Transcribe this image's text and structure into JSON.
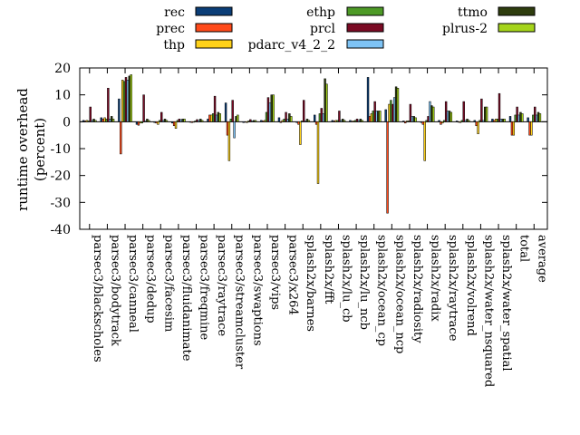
{
  "chart_data": {
    "type": "bar",
    "ylabel": [
      "runtime overhead",
      "(percent)"
    ],
    "ylim": [
      -40,
      20
    ],
    "yticks": [
      -40,
      -30,
      -20,
      -10,
      0,
      10,
      20
    ],
    "legend_position": "top",
    "categories": [
      "parsec3/blackscholes",
      "parsec3/bodytrack",
      "parsec3/canneal",
      "parsec3/dedup",
      "parsec3/facesim",
      "parsec3/fluidanimate",
      "parsec3/freqmine",
      "parsec3/raytrace",
      "parsec3/streamcluster",
      "parsec3/swaptions",
      "parsec3/vips",
      "parsec3/x264",
      "splash2x/barnes",
      "splash2x/fft",
      "splash2x/lu_cb",
      "splash2x/lu_ncb",
      "splash2x/ocean_cp",
      "splash2x/ocean_ncp",
      "splash2x/radiosity",
      "splash2x/radix",
      "splash2x/raytrace",
      "splash2x/volrend",
      "splash2x/water_nsquared",
      "splash2x/water_spatial",
      "total",
      "average"
    ],
    "series": [
      {
        "name": "rec",
        "color": "#0b3e77",
        "values": [
          0.5,
          1.5,
          8.5,
          -1.0,
          -0.3,
          -0.5,
          0.0,
          1.0,
          7.0,
          -0.3,
          0.5,
          1.5,
          -0.3,
          2.5,
          0.5,
          0.5,
          16.5,
          4.5,
          0.3,
          -0.3,
          0.5,
          0.3,
          0.5,
          1.0,
          2.0,
          1.5
        ]
      },
      {
        "name": "prec",
        "color": "#ff4a1a",
        "values": [
          0.3,
          1.0,
          -12.0,
          -1.3,
          -0.5,
          -1.5,
          -0.3,
          2.5,
          -5.0,
          -0.2,
          0.3,
          -0.3,
          -1.0,
          -1.0,
          0.3,
          0.2,
          2.0,
          -34.0,
          -0.5,
          -1.0,
          -1.0,
          0.0,
          -1.5,
          0.5,
          -5.0,
          -5.0
        ]
      },
      {
        "name": "thp",
        "color": "#ffd21a",
        "values": [
          0.5,
          1.5,
          15.5,
          -0.5,
          -1.0,
          -2.5,
          -0.2,
          2.5,
          -14.5,
          -0.3,
          0.5,
          0.5,
          -8.5,
          -23.0,
          0.5,
          0.3,
          3.0,
          6.5,
          0.3,
          -14.5,
          -0.5,
          -0.3,
          -4.5,
          1.0,
          -5.0,
          -5.0
        ]
      },
      {
        "name": "ethp",
        "color": "#4d9a26",
        "values": [
          0.3,
          1.0,
          15.0,
          -0.5,
          0.5,
          0.5,
          0.3,
          3.0,
          1.0,
          0.3,
          3.5,
          1.0,
          0.3,
          3.0,
          0.5,
          0.5,
          4.0,
          8.0,
          0.3,
          0.5,
          0.5,
          0.5,
          0.5,
          1.0,
          2.5,
          2.5
        ]
      },
      {
        "name": "prcl",
        "color": "#7a0a24",
        "values": [
          5.5,
          12.5,
          16.5,
          10.0,
          3.5,
          1.0,
          0.8,
          9.5,
          8.0,
          0.8,
          9.0,
          3.5,
          8.0,
          5.0,
          4.0,
          1.0,
          7.5,
          6.5,
          6.5,
          2.0,
          7.5,
          7.5,
          8.5,
          10.5,
          5.5,
          5.5
        ]
      },
      {
        "name": "pdarc_v4_2_2",
        "color": "#7ec3f5",
        "values": [
          0.5,
          1.0,
          15.5,
          0.3,
          0.5,
          0.8,
          0.5,
          2.5,
          -6.0,
          0.3,
          7.0,
          1.0,
          0.3,
          3.0,
          0.5,
          0.5,
          4.0,
          9.0,
          2.0,
          7.5,
          4.0,
          0.5,
          0.5,
          1.0,
          2.5,
          2.5
        ]
      },
      {
        "name": "ttmo",
        "color": "#2e3d0e",
        "values": [
          1.0,
          2.0,
          17.0,
          1.0,
          1.0,
          1.0,
          1.0,
          3.5,
          2.0,
          0.5,
          10.0,
          3.0,
          1.0,
          16.0,
          1.0,
          1.0,
          4.0,
          13.0,
          2.0,
          6.0,
          4.0,
          1.0,
          5.5,
          1.0,
          3.5,
          3.5
        ]
      },
      {
        "name": "plrus-2",
        "color": "#a5d41a",
        "values": [
          0.5,
          1.0,
          17.5,
          0.5,
          0.5,
          1.0,
          0.5,
          3.0,
          2.5,
          0.5,
          10.0,
          2.0,
          0.5,
          14.0,
          0.5,
          0.5,
          4.0,
          12.5,
          1.5,
          5.5,
          3.5,
          0.5,
          5.5,
          1.0,
          3.0,
          3.0
        ]
      }
    ]
  }
}
